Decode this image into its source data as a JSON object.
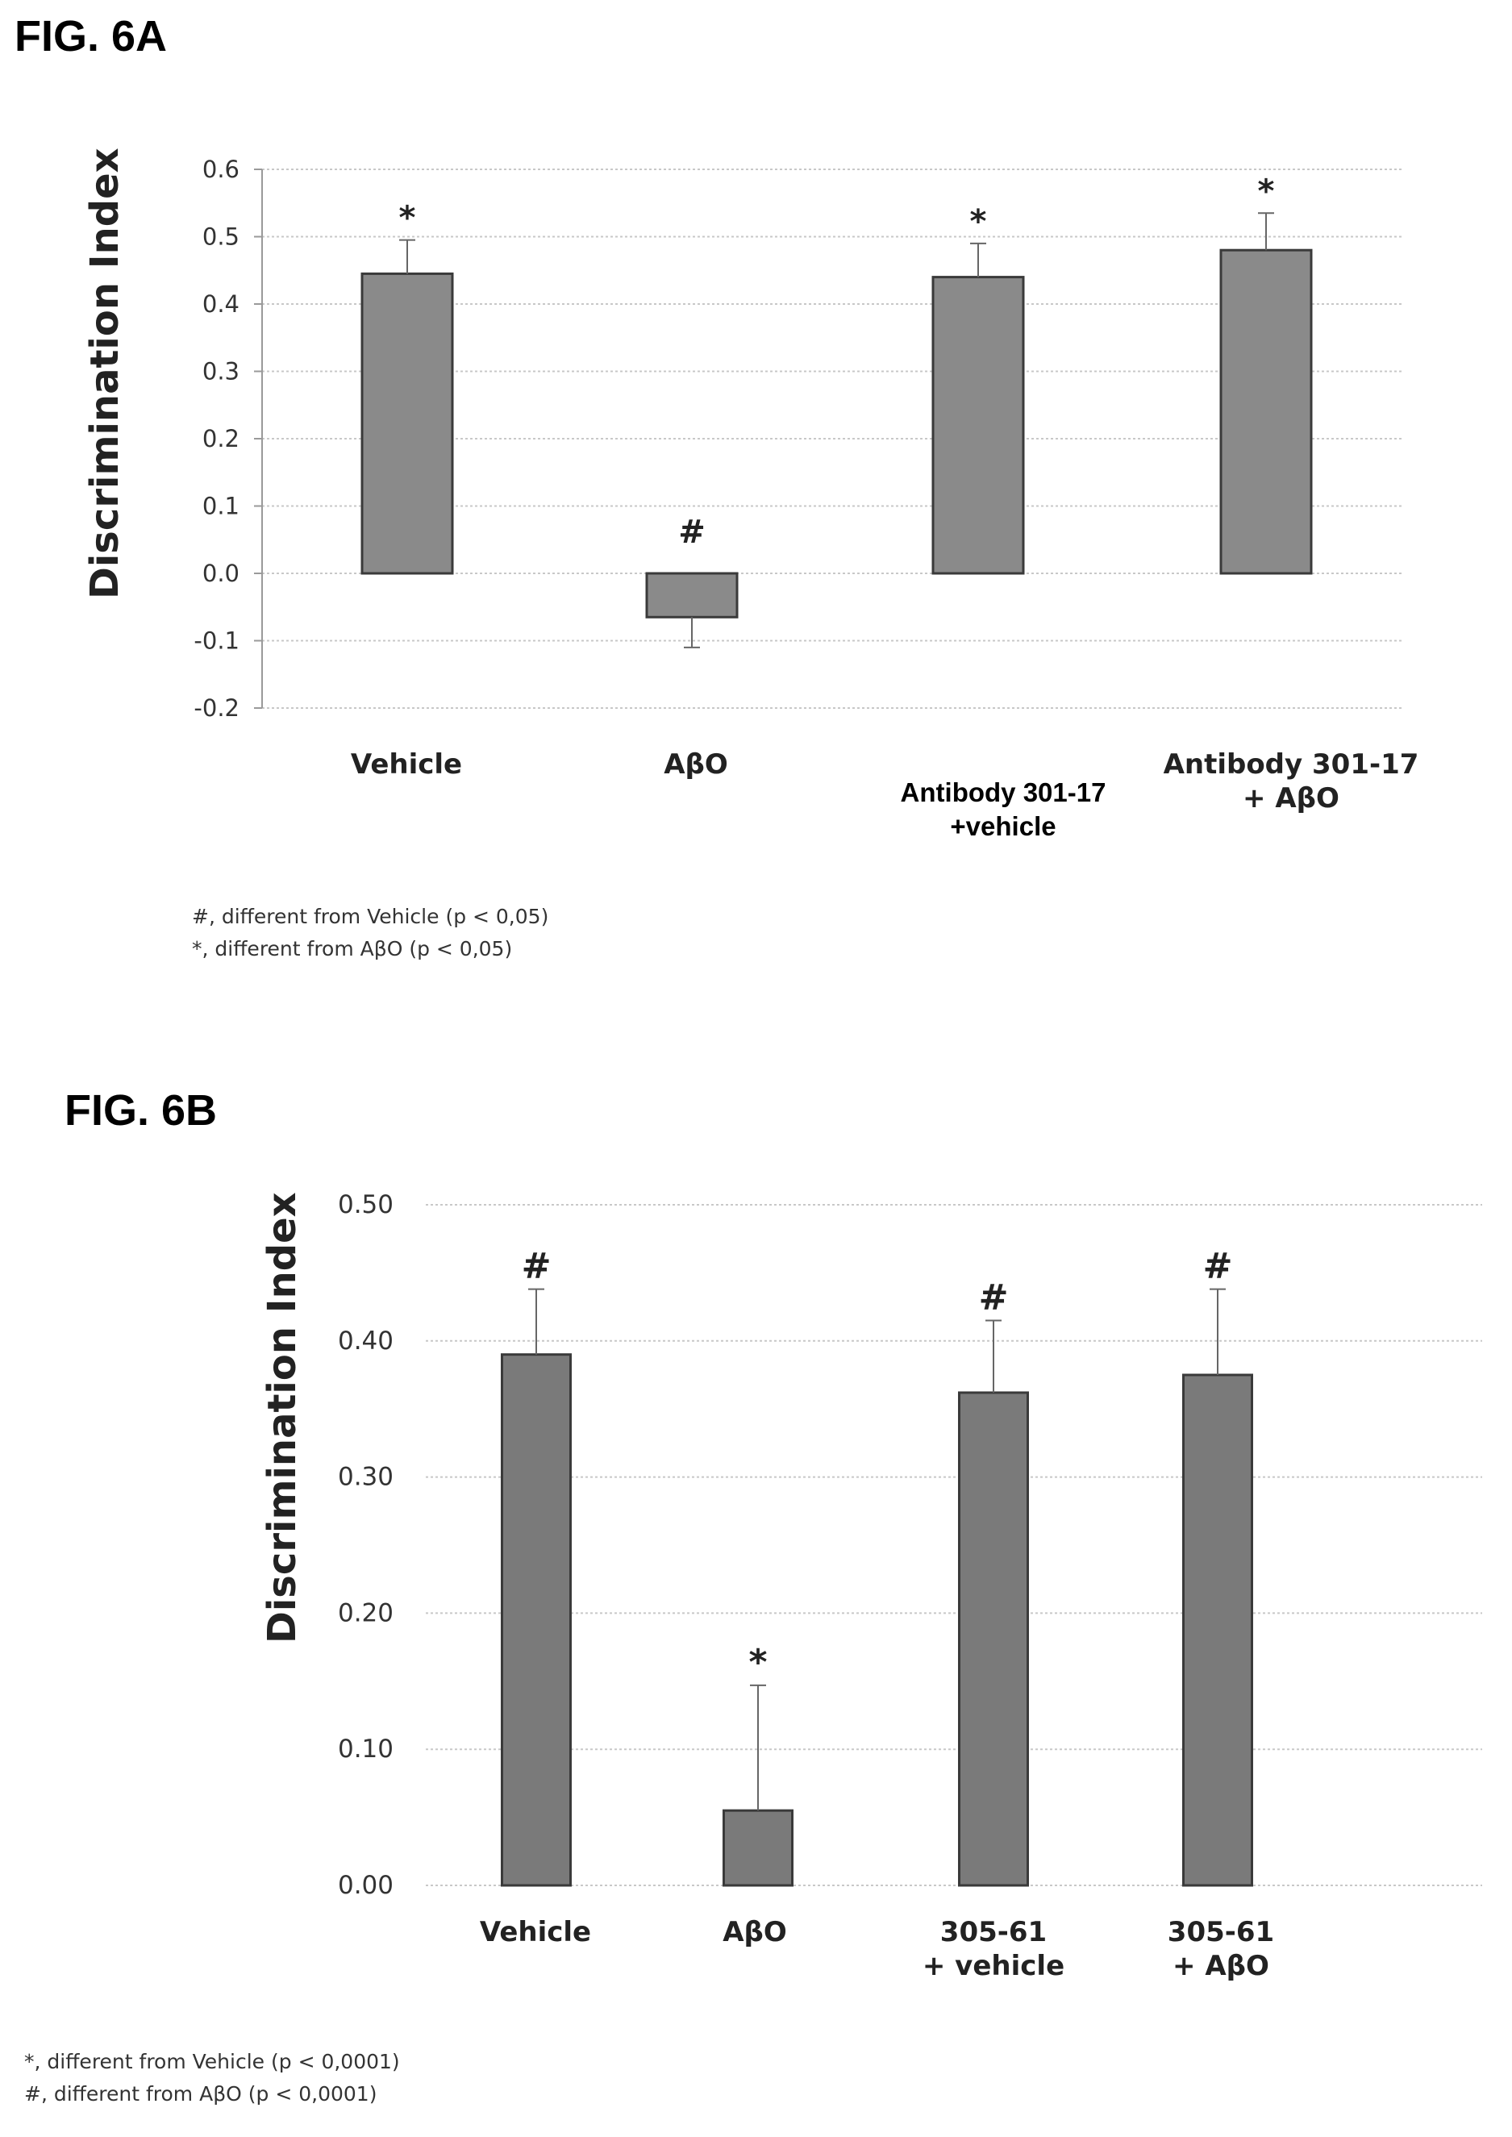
{
  "fig_a": {
    "label": "FIG. 6A",
    "notes": [
      "#, different from Vehicle (p < 0,05)",
      "*, different from AβO (p < 0,05)"
    ]
  },
  "fig_b": {
    "label": "FIG. 6B",
    "notes": [
      "*, different from Vehicle (p < 0,0001)",
      "#, different from AβO (p < 0,0001)"
    ]
  },
  "chart_data": [
    {
      "type": "bar",
      "ylabel": "Discrimination Index",
      "xlabel": "",
      "ylim": [
        -0.2,
        0.6
      ],
      "yticks": [
        -0.2,
        -0.1,
        0.0,
        0.1,
        0.2,
        0.3,
        0.4,
        0.5,
        0.6
      ],
      "ytick_labels": [
        "-0.2",
        "-0.1",
        "0.0",
        "0.1",
        "0.2",
        "0.3",
        "0.4",
        "0.5",
        "0.6"
      ],
      "grid": true,
      "categories": [
        "Vehicle",
        "AβO",
        "Antibody 301-17\n+vehicle",
        "Antibody 301-17\n+ AβO"
      ],
      "values": [
        0.445,
        -0.065,
        0.44,
        0.48
      ],
      "error": [
        0.05,
        0.045,
        0.05,
        0.055
      ],
      "annotations": [
        "*",
        "#",
        "*",
        "*"
      ],
      "bar_color": "#8a8a8a"
    },
    {
      "type": "bar",
      "ylabel": "Discrimination Index",
      "xlabel": "",
      "ylim": [
        0.0,
        0.5
      ],
      "yticks": [
        0.0,
        0.1,
        0.2,
        0.3,
        0.4,
        0.5
      ],
      "ytick_labels": [
        "0.00",
        "0.10",
        "0.20",
        "0.30",
        "0.40",
        "0.50"
      ],
      "grid": true,
      "categories": [
        "Vehicle",
        "AβO",
        "305-61\n+ vehicle",
        "305-61\n+ AβO"
      ],
      "values": [
        0.39,
        0.055,
        0.362,
        0.375
      ],
      "error": [
        0.048,
        0.092,
        0.053,
        0.063
      ],
      "annotations": [
        "#",
        "*",
        "#",
        "#"
      ],
      "bar_color": "#7a7a7a"
    }
  ]
}
